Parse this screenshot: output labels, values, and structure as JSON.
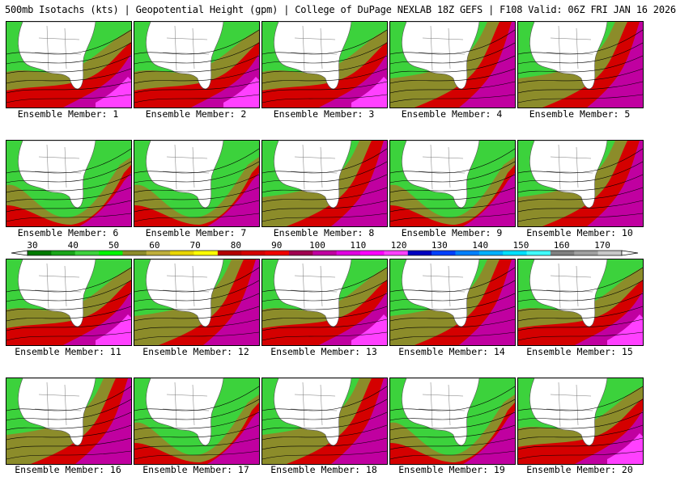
{
  "header": {
    "title": "500mb Isotachs (kts) | Geopotential Height (gpm) | College of DuPage NEXLAB   18Z GEFS | F108 Valid: 06Z FRI JAN 16 2026"
  },
  "legend": {
    "ticks": [
      "30",
      "40",
      "50",
      "60",
      "70",
      "80",
      "90",
      "100",
      "110",
      "120",
      "130",
      "140",
      "150",
      "160",
      "170"
    ],
    "colors": [
      "#007a00",
      "#19a519",
      "#3cd23c",
      "#00f500",
      "#8c8c2a",
      "#bfae3c",
      "#e8d400",
      "#ffff00",
      "#b30000",
      "#d40000",
      "#f00000",
      "#a00050",
      "#c000a0",
      "#e000e0",
      "#ff00ff",
      "#ff40ff",
      "#0000c0",
      "#0040ff",
      "#0080ff",
      "#00b0ff",
      "#00e0ff",
      "#40ffff",
      "#808080",
      "#a0a0a0",
      "#c8c8c8"
    ]
  },
  "members": [
    {
      "label": "Ensemble Member: 1",
      "jet": "south"
    },
    {
      "label": "Ensemble Member: 2",
      "jet": "south"
    },
    {
      "label": "Ensemble Member: 3",
      "jet": "south"
    },
    {
      "label": "Ensemble Member: 4",
      "jet": "east"
    },
    {
      "label": "Ensemble Member: 5",
      "jet": "east"
    },
    {
      "label": "Ensemble Member: 6",
      "jet": "deep"
    },
    {
      "label": "Ensemble Member: 7",
      "jet": "deep"
    },
    {
      "label": "Ensemble Member: 8",
      "jet": "east"
    },
    {
      "label": "Ensemble Member: 9",
      "jet": "deep"
    },
    {
      "label": "Ensemble Member: 10",
      "jet": "east"
    },
    {
      "label": "Ensemble Member: 11",
      "jet": "south"
    },
    {
      "label": "Ensemble Member: 12",
      "jet": "east"
    },
    {
      "label": "Ensemble Member: 13",
      "jet": "south"
    },
    {
      "label": "Ensemble Member: 14",
      "jet": "east"
    },
    {
      "label": "Ensemble Member: 15",
      "jet": "south"
    },
    {
      "label": "Ensemble Member: 16",
      "jet": "east"
    },
    {
      "label": "Ensemble Member: 17",
      "jet": "deep"
    },
    {
      "label": "Ensemble Member: 18",
      "jet": "east"
    },
    {
      "label": "Ensemble Member: 19",
      "jet": "deep"
    },
    {
      "label": "Ensemble Member: 20",
      "jet": "south"
    }
  ]
}
